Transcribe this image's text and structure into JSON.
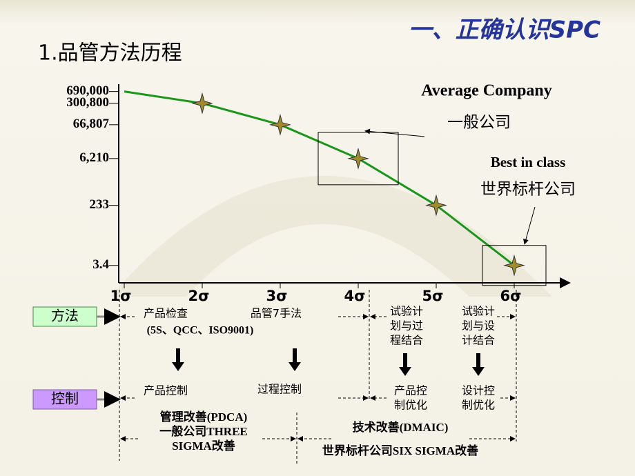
{
  "header": {
    "title": "一、正确认识SPC",
    "subtitle": "1.品管方法历程"
  },
  "chart_data": {
    "type": "line",
    "categories": [
      "1σ",
      "2σ",
      "3σ",
      "4σ",
      "5σ",
      "6σ"
    ],
    "values": [
      690000,
      300800,
      66807,
      6210,
      233,
      3.4
    ],
    "ylim": [
      1,
      1000000
    ],
    "log_scale": true,
    "yticks": [
      {
        "value": 690000,
        "label": "690,000"
      },
      {
        "value": 300800,
        "label": "300,800"
      },
      {
        "value": 66807,
        "label": "66,807"
      },
      {
        "value": 6210,
        "label": "6,210"
      },
      233,
      3.4
    ],
    "color": "#1a961a",
    "marker_color": "#a08c2c",
    "annotations": [
      {
        "label": "Average Company",
        "note": "一般公司"
      },
      {
        "label": "Best in class",
        "note": "世界标杆公司"
      }
    ]
  },
  "diagram": {
    "method": "方法",
    "control": "控制",
    "methods": [
      [
        "产品检查",
        "(5S、QCC、ISO9001)"
      ],
      [
        "品管7手法"
      ],
      [
        "试验计",
        "划与过",
        "程结合"
      ],
      [
        "试验计",
        "划与设",
        "计结合"
      ]
    ],
    "controls": [
      [
        "产品控制"
      ],
      [
        "过程控制"
      ],
      [
        "产品控",
        "制优化"
      ],
      [
        "设计控",
        "制优化"
      ]
    ],
    "improvements": [
      [
        "管理改善(PDCA)",
        "一般公司THREE",
        "SIGMA改善"
      ],
      [
        "技术改善(DMAIC)",
        "世界标杆公司SIX SIGMA改善"
      ]
    ]
  }
}
